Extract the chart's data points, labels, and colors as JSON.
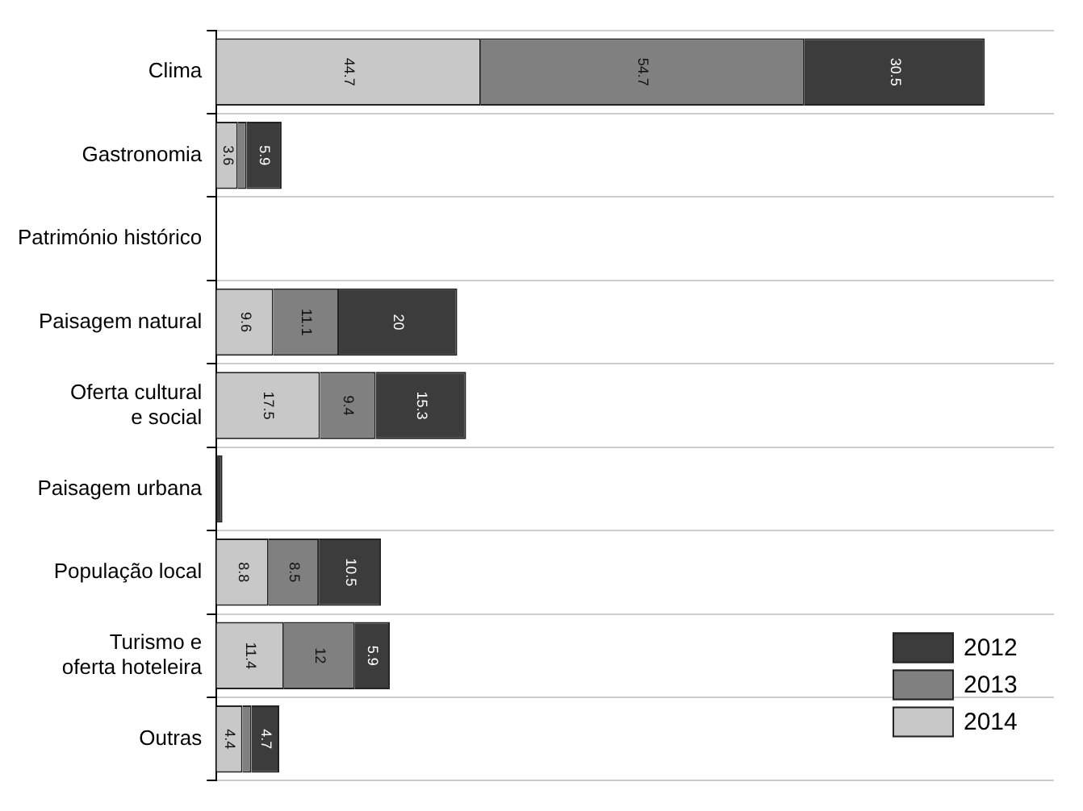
{
  "chart_data": {
    "type": "bar",
    "orientation": "horizontal",
    "stacked": true,
    "categories": [
      "Clima",
      "Gastronomia",
      "Património histórico",
      "Paisagem natural",
      "Oferta cultural e social",
      "Paisagem urbana",
      "População local",
      "Turismo e oferta hoteleira",
      "Outras"
    ],
    "series": [
      {
        "name": "2014",
        "color": "#c8c8c8",
        "values": [
          44.7,
          3.6,
          null,
          9.6,
          17.5,
          null,
          8.8,
          11.4,
          4.4
        ],
        "value_labels": [
          "44.7",
          "3.6",
          null,
          "9.6",
          "17.5",
          null,
          "8.8",
          "11.4",
          "4.4"
        ]
      },
      {
        "name": "2013",
        "color": "#808080",
        "values": [
          54.7,
          1.5,
          null,
          11.1,
          9.4,
          null,
          8.5,
          12,
          1.5
        ],
        "value_labels": [
          "54.7",
          null,
          null,
          "11.1",
          "9.4",
          null,
          "8.5",
          "12",
          null
        ]
      },
      {
        "name": "2012",
        "color": "#3c3c3c",
        "values": [
          30.5,
          5.9,
          null,
          20,
          15.3,
          1,
          10.5,
          5.9,
          4.7
        ],
        "value_labels": [
          "30.5",
          "5.9",
          null,
          "20",
          "15.3",
          null,
          "10.5",
          "5.9",
          "4.7"
        ]
      }
    ],
    "grid": "y",
    "legend": "bottom right",
    "tick_labels": "y"
  }
}
